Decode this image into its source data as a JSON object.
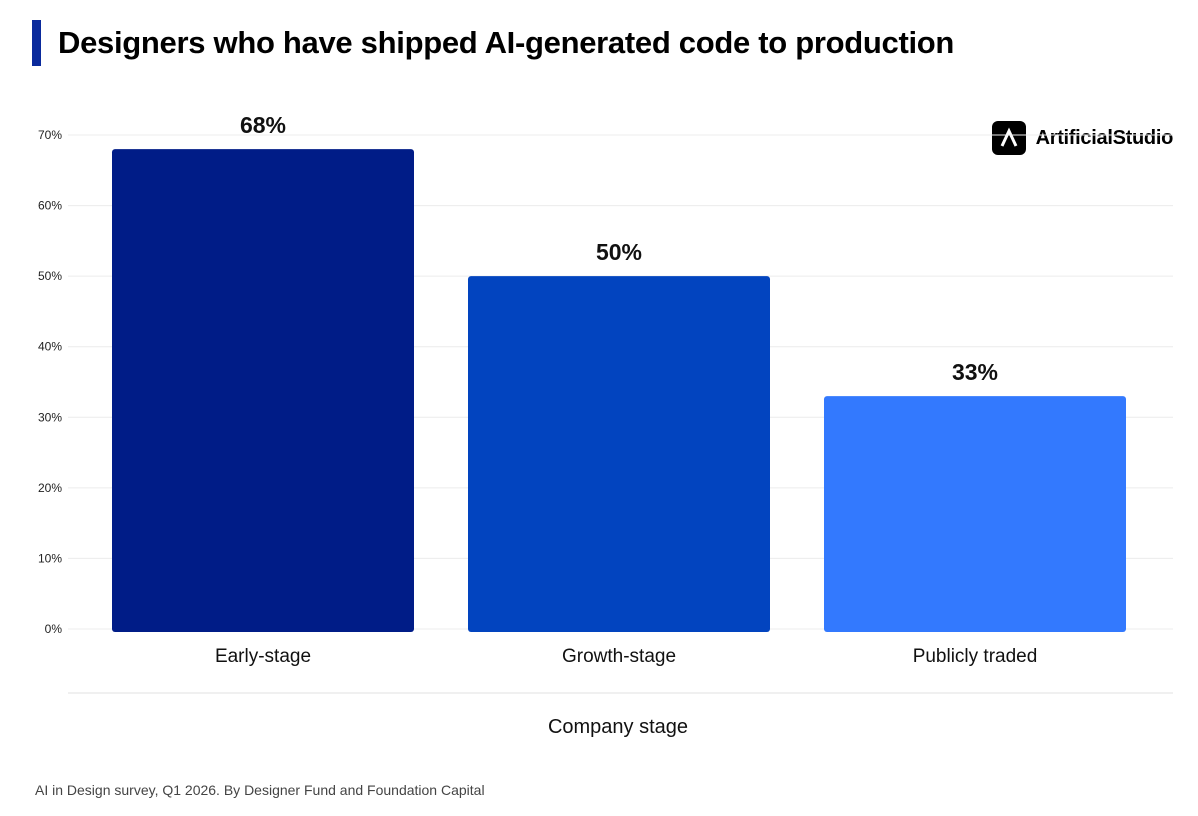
{
  "title": "Designers who have shipped AI-generated code to production",
  "brand": {
    "name": "ArtificialStudio",
    "icon": "lambda-icon"
  },
  "source": "AI in Design survey, Q1 2026. By Designer Fund and Foundation Capital",
  "colors": {
    "accent": "#0a2a9c",
    "gridline": "#ececec"
  },
  "chart_data": {
    "type": "bar",
    "categories": [
      "Early-stage",
      "Growth-stage",
      "Publicly traded"
    ],
    "values": [
      68,
      50,
      33
    ],
    "value_labels": [
      "68%",
      "50%",
      "33%"
    ],
    "bar_colors": [
      "#001c87",
      "#0244bf",
      "#3379fe"
    ],
    "xlabel": "Company stage",
    "ylabel": "",
    "ylim": [
      0,
      70
    ],
    "yticks": [
      0,
      10,
      20,
      30,
      40,
      50,
      60,
      70
    ],
    "ytick_labels": [
      "0%",
      "10%",
      "20%",
      "30%",
      "40%",
      "50%",
      "60%",
      "70%"
    ],
    "grid": true,
    "legend": "none"
  }
}
